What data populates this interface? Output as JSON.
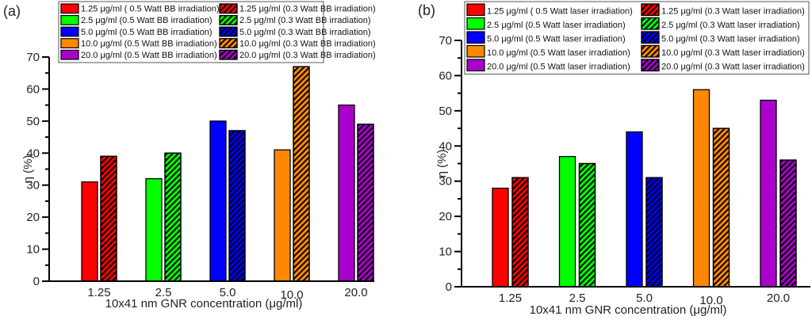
{
  "chart_data": [
    {
      "type": "bar",
      "panel_label": "(a)",
      "title": "",
      "xlabel": "10x41 nm GNR concentration (μg/ml)",
      "ylabel": "η (%)",
      "ylim": [
        0,
        70
      ],
      "yticks": [
        0,
        10,
        20,
        30,
        40,
        50,
        60,
        70
      ],
      "categories": [
        "1.25",
        "2.5",
        "5.0",
        "10.0",
        "20.0"
      ],
      "category_colors": [
        "#ff0000",
        "#00ff00",
        "#0000ff",
        "#ff8800",
        "#aa00cc"
      ],
      "series": [
        {
          "name": "0.5 Watt BB irradiation",
          "pattern": "solid",
          "values": [
            31,
            32,
            50,
            41,
            55
          ]
        },
        {
          "name": "0.3 Watt BB irradiation",
          "pattern": "hatched",
          "values": [
            39,
            40,
            47,
            67,
            49
          ]
        }
      ],
      "legend": {
        "placement": "top",
        "columns": [
          [
            "1.25 μg/ml ( 0.5 Watt BB irradiation)",
            "2.5 μg/ml (0.5 Watt BB irradiation)",
            "5.0 μg/ml (0.5 Watt BB irradiation)",
            "10.0 μg/ml (0.5 Watt BB irradiation)",
            "20.0 μg/ml (0.5 Watt BB irradiation)"
          ],
          [
            "1.25 μg/ml (0.3 Watt BB irradiation)",
            "2.5 μg/ml (0.3 Watt BB irradiation)",
            "5.0 μg/ml (0.3 Watt BB irradiation)",
            "10.0 μg/ml (0.3 Watt BB irradiation)",
            "20.0 μg/ml (0.3 Watt BB irradiation)"
          ]
        ]
      },
      "grid": false
    },
    {
      "type": "bar",
      "panel_label": "(b)",
      "title": "",
      "xlabel": "10x41 nm GNR concentration (μg/ml)",
      "ylabel": "η (%)",
      "ylim": [
        0,
        70
      ],
      "yticks": [
        0,
        10,
        20,
        30,
        40,
        50,
        60,
        70
      ],
      "categories": [
        "1.25",
        "2.5",
        "5.0",
        "10.0",
        "20.0"
      ],
      "category_colors": [
        "#ff0000",
        "#00ff00",
        "#0000ff",
        "#ff8800",
        "#aa00cc"
      ],
      "series": [
        {
          "name": "0.5 Watt laser irradiation",
          "pattern": "solid",
          "values": [
            28,
            37,
            44,
            56,
            53
          ]
        },
        {
          "name": "0.3 Watt laser irradiation",
          "pattern": "hatched",
          "values": [
            31,
            35,
            31,
            45,
            36
          ]
        }
      ],
      "legend": {
        "placement": "top",
        "columns": [
          [
            "1.25 μg/ml ( 0.5 Watt laser irradiation)",
            "2.5 μg/ml (0.5 Watt laser irradiation)",
            "5.0 μg/ml (0.5 Watt laser irradiation)",
            "10.0 μg/ml (0.5 Watt laser irradiation)",
            "20.0 μg/ml (0.5 Watt laser irradiation)"
          ],
          [
            "1.25 μg/ml (0.3 Watt laser  irradiation)",
            "2.5 μg/ml (0.3 Watt laser irradiation)",
            "5.0 μg/ml (0.3 Watt laser irradiation)",
            "10.0 μg/ml (0.3 Watt laser irradiation)",
            "20.0 μg/ml (0.3 Watt laser irradiation)"
          ]
        ]
      },
      "grid": false
    }
  ]
}
